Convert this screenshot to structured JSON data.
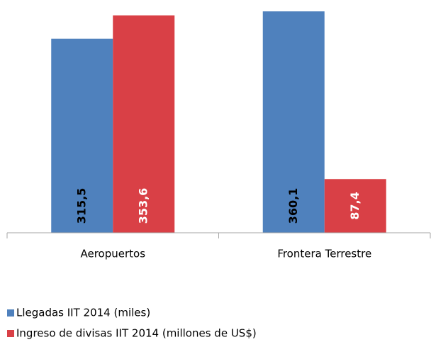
{
  "chart_data": {
    "type": "bar",
    "categories": [
      "Aeropuertos",
      "Frontera Terrestre"
    ],
    "series": [
      {
        "name": "Llegadas IIT 2014 (miles)",
        "color": "#4f81bd",
        "values": [
          315.5,
          360.1
        ],
        "value_labels": [
          "315,5",
          "360,1"
        ]
      },
      {
        "name": "Ingreso de divisas IIT 2014 (millones de US$)",
        "color": "#d94046",
        "values": [
          353.6,
          87.4
        ],
        "value_labels": [
          "353,6",
          "87,4"
        ]
      }
    ],
    "legend": "bottom-left"
  }
}
